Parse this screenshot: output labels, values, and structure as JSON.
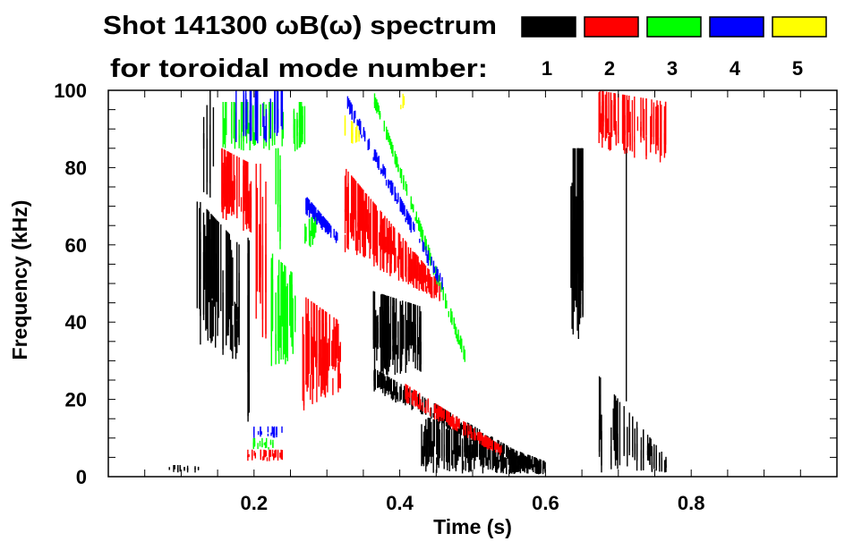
{
  "chart_data": {
    "type": "heatmap",
    "title": "Shot 141300 ωB(ω) spectrum",
    "subtitle": "for toroidal mode number:",
    "xlabel": "Time (s)",
    "ylabel": "Frequency (kHz)",
    "xlim": [
      0,
      1.0
    ],
    "ylim": [
      0,
      100
    ],
    "xticks": [
      0.2,
      0.4,
      0.6,
      0.8
    ],
    "xtick_labels": [
      "0.2",
      "0.4",
      "0.6",
      "0.8"
    ],
    "x_minor_step": 0.05,
    "yticks": [
      0,
      20,
      40,
      60,
      80,
      100
    ],
    "ytick_labels": [
      "0",
      "20",
      "40",
      "60",
      "80",
      "100"
    ],
    "y_minor_step": 5,
    "legend": {
      "placement": "top-right",
      "entries": [
        {
          "label": "1",
          "color": "#000000"
        },
        {
          "label": "2",
          "color": "#ff0000"
        },
        {
          "label": "3",
          "color": "#00ff00"
        },
        {
          "label": "4",
          "color": "#0000ff"
        },
        {
          "label": "5",
          "color": "#ffff00"
        }
      ]
    },
    "regions": [
      {
        "mode": 1,
        "t": [
          0.122,
          0.18
        ],
        "lo": [
          33,
          30
        ],
        "hi": [
          72,
          60
        ],
        "density": 0.9
      },
      {
        "mode": 1,
        "t": [
          0.131,
          0.147
        ],
        "lo": [
          70,
          70
        ],
        "hi": [
          100,
          100
        ],
        "density": 0.5
      },
      {
        "mode": 1,
        "t": [
          0.18,
          0.196
        ],
        "lo": [
          13,
          13
        ],
        "hi": [
          67,
          60
        ],
        "density": 0.35
      },
      {
        "mode": 1,
        "t": [
          0.075,
          0.135
        ],
        "lo": [
          1,
          1
        ],
        "hi": [
          3,
          3
        ],
        "density": 0.3
      },
      {
        "mode": 1,
        "t": [
          0.364,
          0.43
        ],
        "lo": [
          26,
          26
        ],
        "hi": [
          48,
          44
        ],
        "density": 0.9
      },
      {
        "mode": 1,
        "t": [
          0.365,
          0.585
        ],
        "lo": [
          22,
          1
        ],
        "hi": [
          28,
          4
        ],
        "density": 0.7
      },
      {
        "mode": 1,
        "t": [
          0.43,
          0.6
        ],
        "lo": [
          1,
          0.5
        ],
        "hi": [
          16,
          4
        ],
        "density": 0.9
      },
      {
        "mode": 1,
        "t": [
          0.635,
          0.652
        ],
        "lo": [
          32,
          32
        ],
        "hi": [
          85,
          85
        ],
        "density": 0.8
      },
      {
        "mode": 1,
        "t": [
          0.674,
          0.766
        ],
        "lo": [
          1,
          1
        ],
        "hi": [
          26,
          5
        ],
        "density": 0.45
      },
      {
        "mode": 1,
        "t": [
          0.708,
          0.712
        ],
        "lo": [
          5,
          5
        ],
        "hi": [
          85,
          85
        ],
        "density": 0.5
      },
      {
        "mode": 2,
        "t": [
          0.156,
          0.196
        ],
        "lo": [
          67,
          62
        ],
        "hi": [
          85,
          81
        ],
        "density": 0.8
      },
      {
        "mode": 2,
        "t": [
          0.2,
          0.223
        ],
        "lo": [
          34,
          34
        ],
        "hi": [
          81,
          81
        ],
        "density": 0.4
      },
      {
        "mode": 2,
        "t": [
          0.267,
          0.319
        ],
        "lo": [
          17,
          22
        ],
        "hi": [
          47,
          40
        ],
        "density": 0.85
      },
      {
        "mode": 2,
        "t": [
          0.325,
          0.456
        ],
        "lo": [
          58,
          45
        ],
        "hi": [
          80,
          50
        ],
        "density": 0.9
      },
      {
        "mode": 2,
        "t": [
          0.408,
          0.54
        ],
        "lo": [
          19,
          5
        ],
        "hi": [
          24,
          8
        ],
        "density": 0.8
      },
      {
        "mode": 2,
        "t": [
          0.19,
          0.245
        ],
        "lo": [
          4,
          4
        ],
        "hi": [
          7,
          7
        ],
        "density": 0.6
      },
      {
        "mode": 2,
        "t": [
          0.672,
          0.766
        ],
        "lo": [
          85,
          80
        ],
        "hi": [
          100,
          97
        ],
        "density": 0.6
      },
      {
        "mode": 3,
        "t": [
          0.156,
          0.27
        ],
        "lo": [
          84,
          84
        ],
        "hi": [
          97,
          97
        ],
        "density": 0.45
      },
      {
        "mode": 3,
        "t": [
          0.224,
          0.257
        ],
        "lo": [
          27,
          30
        ],
        "hi": [
          58,
          52
        ],
        "density": 0.85
      },
      {
        "mode": 3,
        "t": [
          0.23,
          0.236
        ],
        "lo": [
          58,
          58
        ],
        "hi": [
          85,
          85
        ],
        "density": 0.6
      },
      {
        "mode": 3,
        "t": [
          0.27,
          0.285
        ],
        "lo": [
          58,
          60
        ],
        "hi": [
          66,
          68
        ],
        "density": 0.6
      },
      {
        "mode": 3,
        "t": [
          0.364,
          0.49
        ],
        "lo": [
          96,
          29
        ],
        "hi": [
          100,
          33
        ],
        "density": 0.6
      },
      {
        "mode": 3,
        "t": [
          0.195,
          0.24
        ],
        "lo": [
          7,
          7
        ],
        "hi": [
          10,
          10
        ],
        "density": 0.4
      },
      {
        "mode": 4,
        "t": [
          0.168,
          0.24
        ],
        "lo": [
          86,
          86
        ],
        "hi": [
          100,
          100
        ],
        "density": 0.4
      },
      {
        "mode": 4,
        "t": [
          0.27,
          0.315
        ],
        "lo": [
          68,
          60
        ],
        "hi": [
          73,
          63
        ],
        "density": 0.7
      },
      {
        "mode": 4,
        "t": [
          0.327,
          0.46
        ],
        "lo": [
          95,
          47
        ],
        "hi": [
          99,
          51
        ],
        "density": 0.7
      },
      {
        "mode": 4,
        "t": [
          0.2,
          0.24
        ],
        "lo": [
          10,
          10
        ],
        "hi": [
          13,
          13
        ],
        "density": 0.4
      },
      {
        "mode": 5,
        "t": [
          0.322,
          0.347
        ],
        "lo": [
          86,
          86
        ],
        "hi": [
          94,
          90
        ],
        "density": 0.5
      },
      {
        "mode": 5,
        "t": [
          0.4,
          0.408
        ],
        "lo": [
          95,
          95
        ],
        "hi": [
          100,
          100
        ],
        "density": 0.6
      }
    ]
  }
}
